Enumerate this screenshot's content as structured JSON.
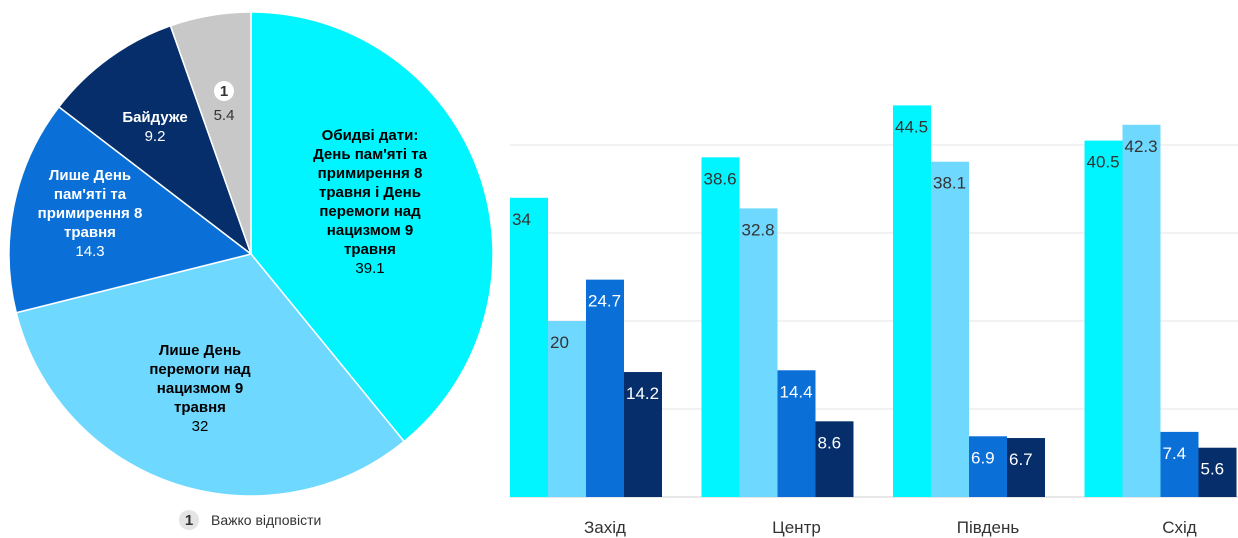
{
  "chart_data": [
    {
      "type": "pie",
      "slices": [
        {
          "label": "Обидві дати: День пам'яті та примирення 8 травня і День перемоги над нацизмом 9 травня",
          "label_lines": [
            "Обидві дати:",
            "День пам'яті та",
            "примирення 8",
            "травня і День",
            "перемоги над",
            "нацизмом 9",
            "травня"
          ],
          "value": 39.1,
          "value_text": "39.1",
          "color": "#00F5FF",
          "text_color": "#000000"
        },
        {
          "label": "Лише День перемоги над нацизмом 9 травня",
          "label_lines": [
            "Лише День",
            "перемоги над",
            "нацизмом 9",
            "травня"
          ],
          "value": 32,
          "value_text": "32",
          "color": "#6FD8FF",
          "text_color": "#000000"
        },
        {
          "label": "Лише День пам'яті та примирення 8 травня",
          "label_lines": [
            "Лише День",
            "пам'яті та",
            "примирення 8",
            "травня"
          ],
          "value": 14.3,
          "value_text": "14.3",
          "color": "#0A70D8",
          "text_color": "#ffffff"
        },
        {
          "label": "Байдуже",
          "label_lines": [
            "Байдуже"
          ],
          "value": 9.2,
          "value_text": "9.2",
          "color": "#052E6B",
          "text_color": "#ffffff"
        },
        {
          "label": "Важко відповісти",
          "label_lines": [],
          "marker": "1",
          "value": 5.4,
          "value_text": "5.4",
          "color": "#C8C8C8",
          "text_color": "#333333"
        }
      ],
      "legend": [
        {
          "marker": "1",
          "label": "Важко відповісти"
        }
      ]
    },
    {
      "type": "bar",
      "categories": [
        "Захід",
        "Центр",
        "Південь",
        "Схід"
      ],
      "series": [
        {
          "values": [
            34,
            38.6,
            44.5,
            40.5
          ],
          "labels": [
            "34",
            "38.6",
            "44.5",
            "40.5"
          ],
          "color": "#00F5FF",
          "text_color": "#333333"
        },
        {
          "values": [
            20,
            32.8,
            38.1,
            42.3
          ],
          "labels": [
            "20",
            "32.8",
            "38.1",
            "42.3"
          ],
          "color": "#6FD8FF",
          "text_color": "#333333"
        },
        {
          "values": [
            24.7,
            14.4,
            6.9,
            7.4
          ],
          "labels": [
            "24.7",
            "14.4",
            "6.9",
            "7.4"
          ],
          "color": "#0A70D8",
          "text_color": "#ffffff"
        },
        {
          "values": [
            14.2,
            8.6,
            6.7,
            5.6
          ],
          "labels": [
            "14.2",
            "8.6",
            "6.7",
            "5.6"
          ],
          "color": "#052E6B",
          "text_color": "#ffffff"
        }
      ],
      "ylim": [
        0,
        50
      ],
      "grid": true
    }
  ]
}
